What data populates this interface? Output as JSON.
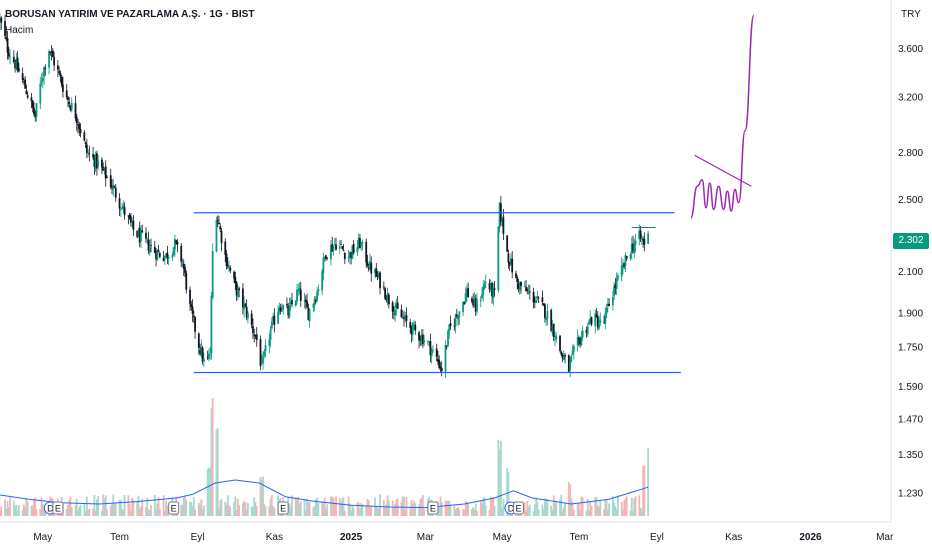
{
  "header": {
    "title": "BORUSAN YATIRIM VE PAZARLAMA A.Ş. · 1G · BIST",
    "volume_label": "Hacim",
    "currency": "TRY"
  },
  "last_price": "2.302",
  "colors": {
    "up": "#089981",
    "down": "#131722",
    "trendline": "#2962ff",
    "projection": "#9c27b0",
    "volume_ma": "#2962ff",
    "volume_up": "#a8d8cf",
    "volume_down": "#f5b5b5",
    "badge": "#089981"
  },
  "event_markers": [
    {
      "label": "D",
      "date": "2024-05-07"
    },
    {
      "label": "E",
      "date": "2024-05-13"
    },
    {
      "label": "E",
      "date": "2024-08-13"
    },
    {
      "label": "E",
      "date": "2024-11-08"
    },
    {
      "label": "E",
      "date": "2025-03-07"
    },
    {
      "label": "D",
      "date": "2025-05-08"
    },
    {
      "label": "E",
      "date": "2025-05-14"
    }
  ],
  "chart_data": {
    "type": "candlestick",
    "title": "BORUSAN YATIRIM VE PAZARLAMA A.Ş. · 1G · BIST",
    "y_scale": "log",
    "ylim": [
      1.18,
      3.95
    ],
    "y_ticks": [
      "3.600",
      "3.200",
      "2.800",
      "2.500",
      "2.100",
      "1.900",
      "1.750",
      "1.590",
      "1.470",
      "1.350",
      "1.230"
    ],
    "x_ticks": [
      {
        "label": "May",
        "date": "2024-05-01"
      },
      {
        "label": "Tem",
        "date": "2024-07-01"
      },
      {
        "label": "Eyl",
        "date": "2024-09-01"
      },
      {
        "label": "Kas",
        "date": "2024-11-01"
      },
      {
        "label": "2025",
        "date": "2025-01-01",
        "bold": true
      },
      {
        "label": "Mar",
        "date": "2025-03-01"
      },
      {
        "label": "May",
        "date": "2025-05-01"
      },
      {
        "label": "Tem",
        "date": "2025-07-01"
      },
      {
        "label": "Eyl",
        "date": "2025-09-01"
      },
      {
        "label": "Kas",
        "date": "2025-11-01"
      },
      {
        "label": "2026",
        "date": "2026-01-01",
        "bold": true
      },
      {
        "label": "Mar",
        "date": "2026-03-01"
      }
    ],
    "xlim": [
      "2024-03-28",
      "2026-03-06"
    ],
    "price_path": [
      [
        "2024-03-28",
        3.85
      ],
      [
        "2024-04-03",
        3.6
      ],
      [
        "2024-04-10",
        3.45
      ],
      [
        "2024-04-18",
        3.25
      ],
      [
        "2024-04-25",
        3.05
      ],
      [
        "2024-04-30",
        3.35
      ],
      [
        "2024-05-06",
        3.6
      ],
      [
        "2024-05-13",
        3.4
      ],
      [
        "2024-05-20",
        3.2
      ],
      [
        "2024-05-28",
        3.05
      ],
      [
        "2024-06-05",
        2.8
      ],
      [
        "2024-06-14",
        2.72
      ],
      [
        "2024-06-24",
        2.6
      ],
      [
        "2024-07-03",
        2.45
      ],
      [
        "2024-07-12",
        2.32
      ],
      [
        "2024-07-22",
        2.25
      ],
      [
        "2024-07-30",
        2.2
      ],
      [
        "2024-08-07",
        2.18
      ],
      [
        "2024-08-14",
        2.24
      ],
      [
        "2024-08-20",
        2.15
      ],
      [
        "2024-08-26",
        1.92
      ],
      [
        "2024-09-02",
        1.76
      ],
      [
        "2024-09-07",
        1.67
      ],
      [
        "2024-09-11",
        1.72
      ],
      [
        "2024-09-13",
        2.2
      ],
      [
        "2024-09-16",
        2.42
      ],
      [
        "2024-09-23",
        2.18
      ],
      [
        "2024-10-01",
        2.02
      ],
      [
        "2024-10-10",
        1.9
      ],
      [
        "2024-10-18",
        1.78
      ],
      [
        "2024-10-22",
        1.66
      ],
      [
        "2024-10-28",
        1.8
      ],
      [
        "2024-11-05",
        1.94
      ],
      [
        "2024-11-12",
        1.9
      ],
      [
        "2024-11-20",
        2.0
      ],
      [
        "2024-11-28",
        1.9
      ],
      [
        "2024-12-05",
        2.0
      ],
      [
        "2024-12-12",
        2.2
      ],
      [
        "2024-12-20",
        2.25
      ],
      [
        "2024-12-30",
        2.18
      ],
      [
        "2025-01-08",
        2.25
      ],
      [
        "2025-01-16",
        2.12
      ],
      [
        "2025-01-24",
        2.05
      ],
      [
        "2025-02-01",
        1.95
      ],
      [
        "2025-02-10",
        1.88
      ],
      [
        "2025-02-20",
        1.82
      ],
      [
        "2025-03-01",
        1.78
      ],
      [
        "2025-03-08",
        1.72
      ],
      [
        "2025-03-14",
        1.66
      ],
      [
        "2025-03-20",
        1.82
      ],
      [
        "2025-03-27",
        1.9
      ],
      [
        "2025-04-03",
        2.0
      ],
      [
        "2025-04-10",
        1.92
      ],
      [
        "2025-04-18",
        2.05
      ],
      [
        "2025-04-25",
        1.98
      ],
      [
        "2025-04-29",
        2.44
      ],
      [
        "2025-05-05",
        2.2
      ],
      [
        "2025-05-12",
        2.05
      ],
      [
        "2025-05-20",
        2.0
      ],
      [
        "2025-05-28",
        1.96
      ],
      [
        "2025-06-05",
        1.9
      ],
      [
        "2025-06-11",
        1.82
      ],
      [
        "2025-06-17",
        1.72
      ],
      [
        "2025-06-23",
        1.66
      ],
      [
        "2025-06-28",
        1.74
      ],
      [
        "2025-07-05",
        1.82
      ],
      [
        "2025-07-12",
        1.88
      ],
      [
        "2025-07-20",
        1.84
      ],
      [
        "2025-07-28",
        2.0
      ],
      [
        "2025-08-04",
        2.1
      ],
      [
        "2025-08-11",
        2.22
      ],
      [
        "2025-08-18",
        2.28
      ],
      [
        "2025-08-22",
        2.25
      ],
      [
        "2025-08-25",
        2.302
      ]
    ],
    "volume": {
      "ma_path": [
        [
          "2024-03-28",
          0.35
        ],
        [
          "2024-04-20",
          0.28
        ],
        [
          "2024-05-15",
          0.22
        ],
        [
          "2024-06-15",
          0.2
        ],
        [
          "2024-07-15",
          0.24
        ],
        [
          "2024-08-15",
          0.3
        ],
        [
          "2024-08-28",
          0.36
        ],
        [
          "2024-09-15",
          0.55
        ],
        [
          "2024-10-01",
          0.6
        ],
        [
          "2024-10-20",
          0.55
        ],
        [
          "2024-11-10",
          0.32
        ],
        [
          "2024-12-01",
          0.25
        ],
        [
          "2025-01-01",
          0.18
        ],
        [
          "2025-02-01",
          0.15
        ],
        [
          "2025-03-01",
          0.14
        ],
        [
          "2025-04-01",
          0.2
        ],
        [
          "2025-04-25",
          0.3
        ],
        [
          "2025-05-10",
          0.42
        ],
        [
          "2025-05-25",
          0.3
        ],
        [
          "2025-06-25",
          0.2
        ],
        [
          "2025-07-25",
          0.28
        ],
        [
          "2025-08-25",
          0.48
        ]
      ],
      "spikes": [
        [
          "2024-09-13",
          2.1
        ],
        [
          "2024-09-16",
          1.6
        ],
        [
          "2024-09-10",
          0.9
        ],
        [
          "2024-10-22",
          0.7
        ],
        [
          "2025-04-29",
          1.3
        ],
        [
          "2025-05-05",
          0.8
        ],
        [
          "2025-06-23",
          0.6
        ],
        [
          "2025-08-22",
          0.9
        ],
        [
          "2025-08-25",
          1.2
        ]
      ]
    },
    "annotations": {
      "resistance": {
        "from": "2024-08-29",
        "to": "2025-09-15",
        "price": 2.42
      },
      "support": {
        "from": "2024-08-29",
        "to": "2025-09-20",
        "price": 1.645
      },
      "short_line": {
        "from": "2025-08-12",
        "to": "2025-08-31",
        "price": 2.335
      },
      "projection_path": [
        [
          "2025-09-28",
          2.39
        ],
        [
          "2025-10-03",
          2.58
        ],
        [
          "2025-10-07",
          2.62
        ],
        [
          "2025-10-10",
          2.45
        ],
        [
          "2025-10-13",
          2.6
        ],
        [
          "2025-10-16",
          2.44
        ],
        [
          "2025-10-20",
          2.58
        ],
        [
          "2025-10-24",
          2.44
        ],
        [
          "2025-10-27",
          2.55
        ],
        [
          "2025-10-30",
          2.43
        ],
        [
          "2025-11-02",
          2.56
        ],
        [
          "2025-11-05",
          2.48
        ],
        [
          "2025-11-10",
          2.95
        ],
        [
          "2025-11-17",
          3.9
        ]
      ],
      "projection_wedge": {
        "from": [
          "2025-10-01",
          2.78
        ],
        "to": [
          "2025-11-15",
          2.58
        ]
      }
    }
  }
}
